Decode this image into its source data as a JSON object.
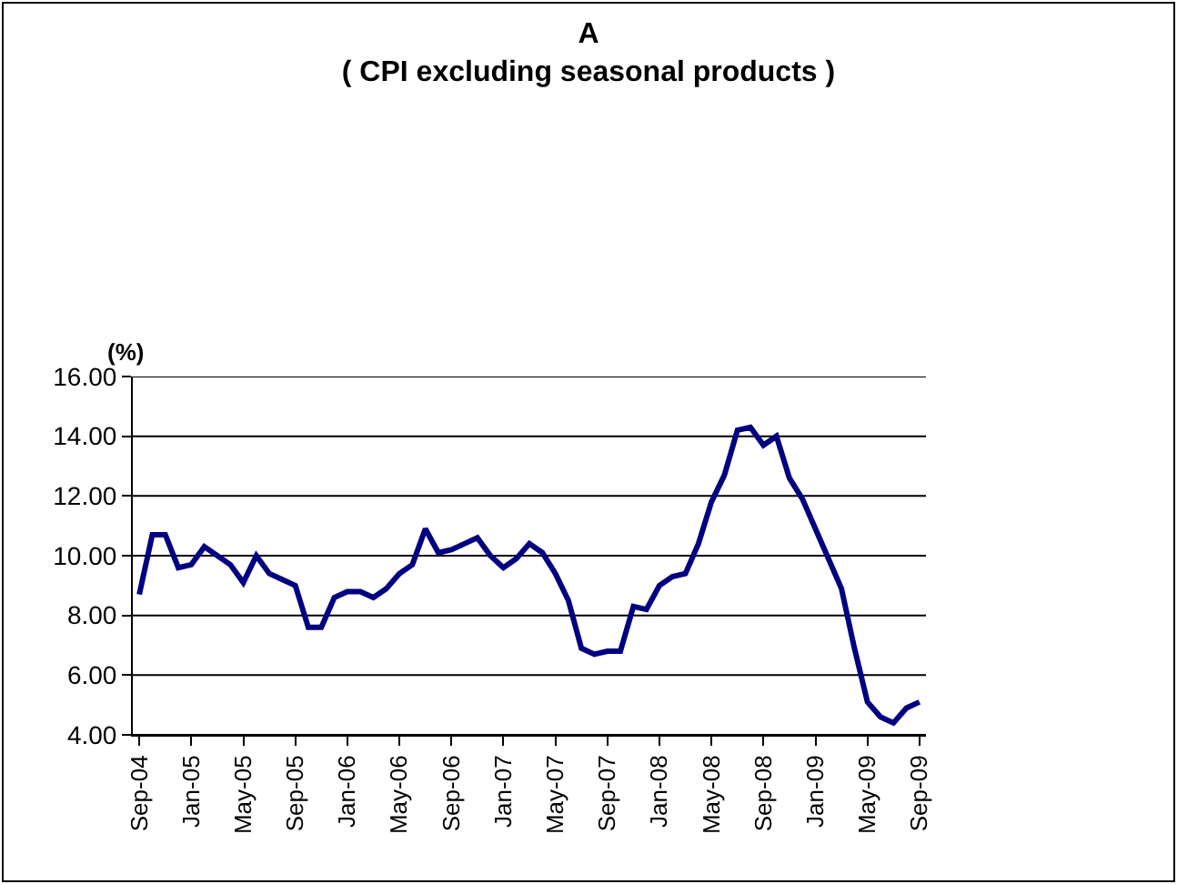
{
  "chart_data": {
    "type": "line",
    "title": "A\n( CPI excluding seasonal products )",
    "ylabel": "(%)",
    "categories": [
      "Sep-04",
      null,
      null,
      null,
      "Jan-05",
      null,
      null,
      null,
      "May-05",
      null,
      null,
      null,
      "Sep-05",
      null,
      null,
      null,
      "Jan-06",
      null,
      null,
      null,
      "May-06",
      null,
      null,
      null,
      "Sep-06",
      null,
      null,
      null,
      "Jan-07",
      null,
      null,
      null,
      "May-07",
      null,
      null,
      null,
      "Sep-07",
      null,
      null,
      null,
      "Jan-08",
      null,
      null,
      null,
      "May-08",
      null,
      null,
      null,
      "Sep-08",
      null,
      null,
      null,
      "Jan-09",
      null,
      null,
      null,
      "May-09",
      null,
      null,
      null,
      "Sep-09"
    ],
    "series": [
      {
        "color": "#000080",
        "values": [
          8.7,
          10.7,
          10.7,
          9.6,
          9.7,
          10.3,
          10.0,
          9.7,
          9.1,
          10.0,
          9.4,
          9.2,
          9.0,
          7.6,
          7.6,
          8.6,
          8.8,
          8.8,
          8.6,
          8.9,
          9.4,
          9.7,
          10.9,
          10.1,
          10.2,
          10.4,
          10.6,
          10.0,
          9.6,
          9.9,
          10.4,
          10.1,
          9.4,
          8.5,
          6.9,
          6.7,
          6.8,
          6.8,
          8.3,
          8.2,
          9.0,
          9.3,
          9.4,
          10.4,
          11.8,
          12.7,
          14.2,
          14.3,
          13.7,
          14.0,
          12.6,
          11.9,
          10.9,
          9.9,
          8.9,
          6.9,
          5.1,
          4.6,
          4.4,
          4.9,
          5.1
        ]
      }
    ],
    "ylim": [
      4,
      16
    ],
    "yticks": [
      {
        "value": 4,
        "label": "4.00"
      },
      {
        "value": 6,
        "label": "6.00"
      },
      {
        "value": 8,
        "label": "8.00"
      },
      {
        "value": 10,
        "label": "10.00"
      },
      {
        "value": 12,
        "label": "12.00"
      },
      {
        "value": 14,
        "label": "14.00"
      },
      {
        "value": 16,
        "label": "16.00"
      }
    ],
    "grid": "y",
    "marker": "none",
    "line_style": "solid"
  }
}
